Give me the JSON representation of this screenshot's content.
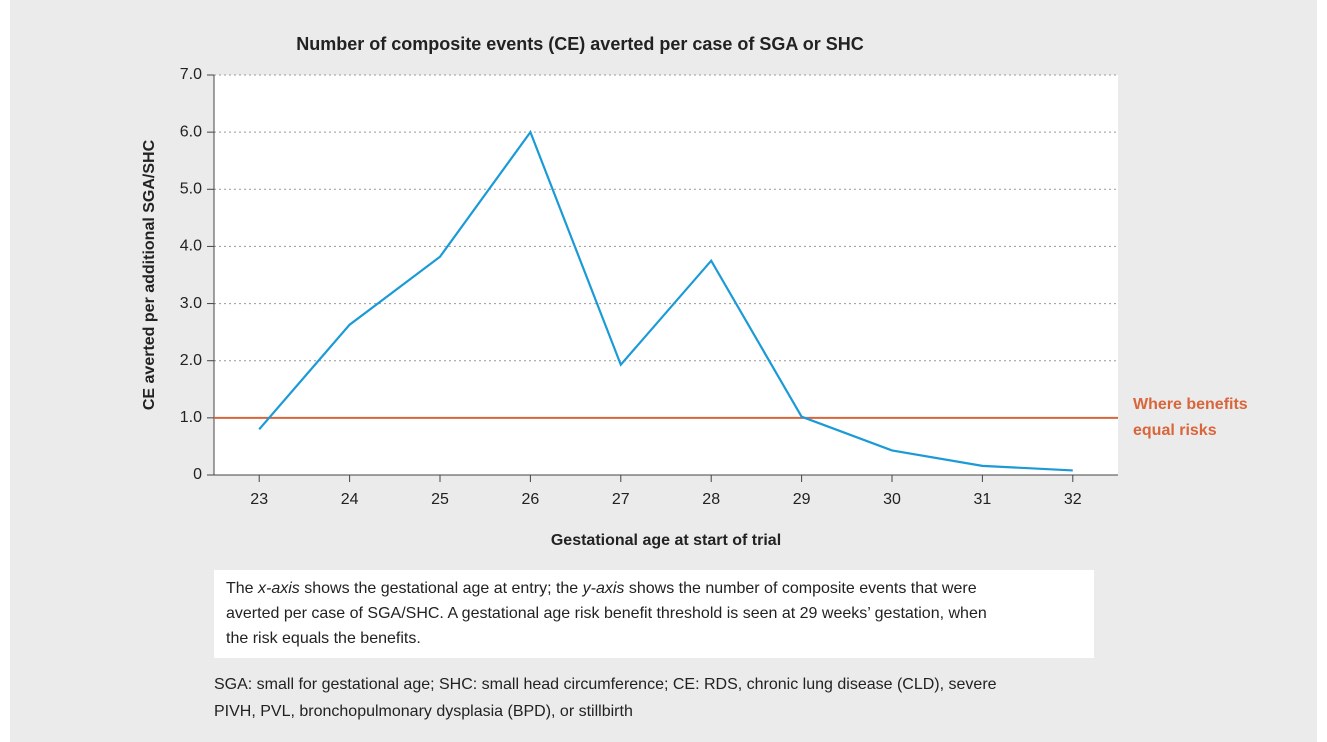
{
  "chart_data": {
    "type": "line",
    "title": "Number of composite events (CE) averted per case of SGA or SHC",
    "x_label": "Gestational age at start of trial",
    "y_label": "CE averted per additional SGA/SHC",
    "x": [
      23,
      24,
      25,
      26,
      27,
      28,
      29,
      30,
      31,
      32
    ],
    "series": [
      {
        "color": "#1a9ad6",
        "values": [
          0.8,
          2.63,
          3.82,
          6.0,
          1.93,
          3.75,
          1.02,
          0.43,
          0.16,
          0.08
        ]
      }
    ],
    "xlim": [
      22.5,
      32.5
    ],
    "xticks": [
      23,
      24,
      25,
      26,
      27,
      28,
      29,
      30,
      31,
      32
    ],
    "ylim": [
      0,
      7
    ],
    "yticks": [
      0,
      {
        "value": 1,
        "label": "1.0"
      },
      {
        "value": 2,
        "label": "2.0"
      },
      {
        "value": 3,
        "label": "3.0"
      },
      {
        "value": 4,
        "label": "4.0"
      },
      {
        "value": 5,
        "label": "5.0"
      },
      {
        "value": 6,
        "label": "6.0"
      },
      {
        "value": 7,
        "label": "7.0"
      }
    ],
    "grid": true,
    "reference_line": {
      "value": 1,
      "color": "#d9653b",
      "label": [
        "Where benefits",
        "equal risks"
      ]
    }
  },
  "caption": [
    "The ",
    "x-axis",
    " shows the gestational age at entry; the ",
    "y-axis",
    " shows the number of composite events that were averted per case of SGA/SHC. A gestational age risk benefit threshold is seen at 29 weeks’ gestation, when the risk equals the benefits."
  ],
  "footnote": "SGA: small for gestational age; SHC: small head circumference; CE: RDS, chronic lung disease (CLD), severe PIVH, PVL, bronchopulmonary dysplasia (BPD), or stillbirth"
}
